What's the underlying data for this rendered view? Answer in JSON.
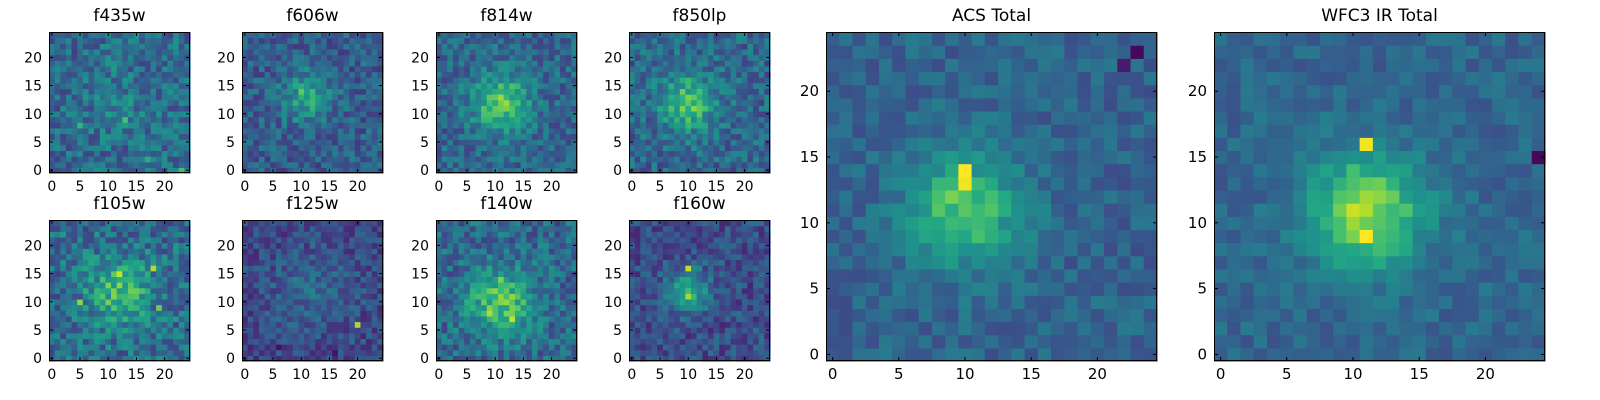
{
  "figure": {
    "background": "#ffffff"
  },
  "chart_data": [
    {
      "id": "f435w",
      "type": "heatmap",
      "title": "f435w",
      "colormap": "viridis",
      "grid_size": 25,
      "xlim": [
        0,
        24
      ],
      "ylim": [
        0,
        24
      ],
      "xticks": [
        0,
        5,
        10,
        15,
        20
      ],
      "yticks": [
        0,
        5,
        10,
        15,
        20
      ],
      "pattern": {
        "base": 0.34,
        "peak_intensity": 0.08,
        "center": [
          12,
          12
        ],
        "sigma": 5.0,
        "noise": 0.16,
        "seed": 11
      },
      "hotspots": [
        [
          5,
          8,
          0.65
        ],
        [
          13,
          9,
          0.7
        ],
        [
          17,
          2,
          0.62
        ],
        [
          23,
          0,
          0.7
        ]
      ]
    },
    {
      "id": "f606w",
      "type": "heatmap",
      "title": "f606w",
      "colormap": "viridis",
      "grid_size": 25,
      "xlim": [
        0,
        24
      ],
      "ylim": [
        0,
        24
      ],
      "xticks": [
        0,
        5,
        10,
        15,
        20
      ],
      "yticks": [
        0,
        5,
        10,
        15,
        20
      ],
      "pattern": {
        "base": 0.3,
        "peak_intensity": 0.3,
        "center": [
          11,
          13
        ],
        "sigma": 3.0,
        "noise": 0.14,
        "seed": 23
      },
      "hotspots": [
        [
          10,
          14,
          0.75
        ],
        [
          12,
          12,
          0.68
        ]
      ]
    },
    {
      "id": "f814w",
      "type": "heatmap",
      "title": "f814w",
      "colormap": "viridis",
      "grid_size": 25,
      "xlim": [
        0,
        24
      ],
      "ylim": [
        0,
        24
      ],
      "xticks": [
        0,
        5,
        10,
        15,
        20
      ],
      "yticks": [
        0,
        5,
        10,
        15,
        20
      ],
      "pattern": {
        "base": 0.33,
        "peak_intensity": 0.42,
        "center": [
          11,
          12
        ],
        "sigma": 3.5,
        "noise": 0.14,
        "seed": 37
      },
      "hotspots": [
        [
          12,
          11,
          0.8
        ],
        [
          10,
          13,
          0.76
        ]
      ]
    },
    {
      "id": "f850lp",
      "type": "heatmap",
      "title": "f850lp",
      "colormap": "viridis",
      "grid_size": 25,
      "xlim": [
        0,
        24
      ],
      "ylim": [
        0,
        24
      ],
      "xticks": [
        0,
        5,
        10,
        15,
        20
      ],
      "yticks": [
        0,
        5,
        10,
        15,
        20
      ],
      "pattern": {
        "base": 0.33,
        "peak_intensity": 0.38,
        "center": [
          10,
          12
        ],
        "sigma": 3.5,
        "noise": 0.15,
        "seed": 41
      },
      "hotspots": [
        [
          9,
          14,
          0.78
        ],
        [
          12,
          10,
          0.74
        ]
      ]
    },
    {
      "id": "f105w",
      "type": "heatmap",
      "title": "f105w",
      "colormap": "viridis",
      "grid_size": 25,
      "xlim": [
        0,
        24
      ],
      "ylim": [
        0,
        24
      ],
      "xticks": [
        0,
        5,
        10,
        15,
        20
      ],
      "yticks": [
        0,
        5,
        10,
        15,
        20
      ],
      "pattern": {
        "base": 0.36,
        "peak_intensity": 0.32,
        "center": [
          12,
          12
        ],
        "sigma": 4.0,
        "noise": 0.18,
        "seed": 53
      },
      "hotspots": [
        [
          12,
          15,
          0.92
        ],
        [
          18,
          16,
          0.88
        ],
        [
          5,
          10,
          0.82
        ],
        [
          19,
          9,
          0.78
        ]
      ]
    },
    {
      "id": "f125w",
      "type": "heatmap",
      "title": "f125w",
      "colormap": "viridis",
      "grid_size": 25,
      "xlim": [
        0,
        24
      ],
      "ylim": [
        0,
        24
      ],
      "xticks": [
        0,
        5,
        10,
        15,
        20
      ],
      "yticks": [
        0,
        5,
        10,
        15,
        20
      ],
      "pattern": {
        "base": 0.22,
        "peak_intensity": 0.12,
        "center": [
          12,
          12
        ],
        "sigma": 5.0,
        "noise": 0.12,
        "seed": 67
      },
      "hotspots": [
        [
          20,
          6,
          0.88
        ],
        [
          6,
          2,
          0.05
        ],
        [
          16,
          1,
          0.05
        ]
      ]
    },
    {
      "id": "f140w",
      "type": "heatmap",
      "title": "f140w",
      "colormap": "viridis",
      "grid_size": 25,
      "xlim": [
        0,
        24
      ],
      "ylim": [
        0,
        24
      ],
      "xticks": [
        0,
        5,
        10,
        15,
        20
      ],
      "yticks": [
        0,
        5,
        10,
        15,
        20
      ],
      "pattern": {
        "base": 0.34,
        "peak_intensity": 0.4,
        "center": [
          11,
          10
        ],
        "sigma": 4.0,
        "noise": 0.16,
        "seed": 71
      },
      "hotspots": [
        [
          9,
          8,
          0.88
        ],
        [
          13,
          7,
          0.92
        ],
        [
          11,
          14,
          0.8
        ]
      ]
    },
    {
      "id": "f160w",
      "type": "heatmap",
      "title": "f160w",
      "colormap": "viridis",
      "grid_size": 25,
      "xlim": [
        0,
        24
      ],
      "ylim": [
        0,
        24
      ],
      "xticks": [
        0,
        5,
        10,
        15,
        20
      ],
      "yticks": [
        0,
        5,
        10,
        15,
        20
      ],
      "pattern": {
        "base": 0.24,
        "peak_intensity": 0.42,
        "center": [
          10,
          12
        ],
        "sigma": 2.5,
        "noise": 0.13,
        "seed": 83
      },
      "hotspots": [
        [
          10,
          16,
          0.9
        ],
        [
          10,
          11,
          0.86
        ],
        [
          21,
          13,
          0.1
        ]
      ]
    },
    {
      "id": "acs_total",
      "type": "heatmap",
      "title": "ACS Total",
      "colormap": "viridis",
      "grid_size": 25,
      "xlim": [
        0,
        24
      ],
      "ylim": [
        0,
        24
      ],
      "xticks": [
        0,
        5,
        10,
        15,
        20
      ],
      "yticks": [
        0,
        5,
        10,
        15,
        20
      ],
      "pattern": {
        "base": 0.32,
        "peak_intensity": 0.4,
        "center": [
          10,
          11
        ],
        "sigma": 3.0,
        "noise": 0.09,
        "seed": 97
      },
      "hotspots": [
        [
          10,
          14,
          1.0
        ],
        [
          10,
          13,
          0.98
        ],
        [
          9,
          12,
          0.8
        ],
        [
          12,
          11,
          0.72
        ],
        [
          23,
          23,
          0.02
        ],
        [
          22,
          22,
          0.08
        ]
      ]
    },
    {
      "id": "wfc3_ir_total",
      "type": "heatmap",
      "title": "WFC3 IR Total",
      "colormap": "viridis",
      "grid_size": 25,
      "xlim": [
        0,
        24
      ],
      "ylim": [
        0,
        24
      ],
      "xticks": [
        0,
        5,
        10,
        15,
        20
      ],
      "yticks": [
        0,
        5,
        10,
        15,
        20
      ],
      "pattern": {
        "base": 0.33,
        "peak_intensity": 0.52,
        "center": [
          11,
          11
        ],
        "sigma": 3.0,
        "noise": 0.08,
        "seed": 101
      },
      "hotspots": [
        [
          11,
          16,
          0.98
        ],
        [
          11,
          9,
          1.0
        ],
        [
          10,
          11,
          0.92
        ],
        [
          24,
          15,
          0.02
        ]
      ]
    }
  ]
}
